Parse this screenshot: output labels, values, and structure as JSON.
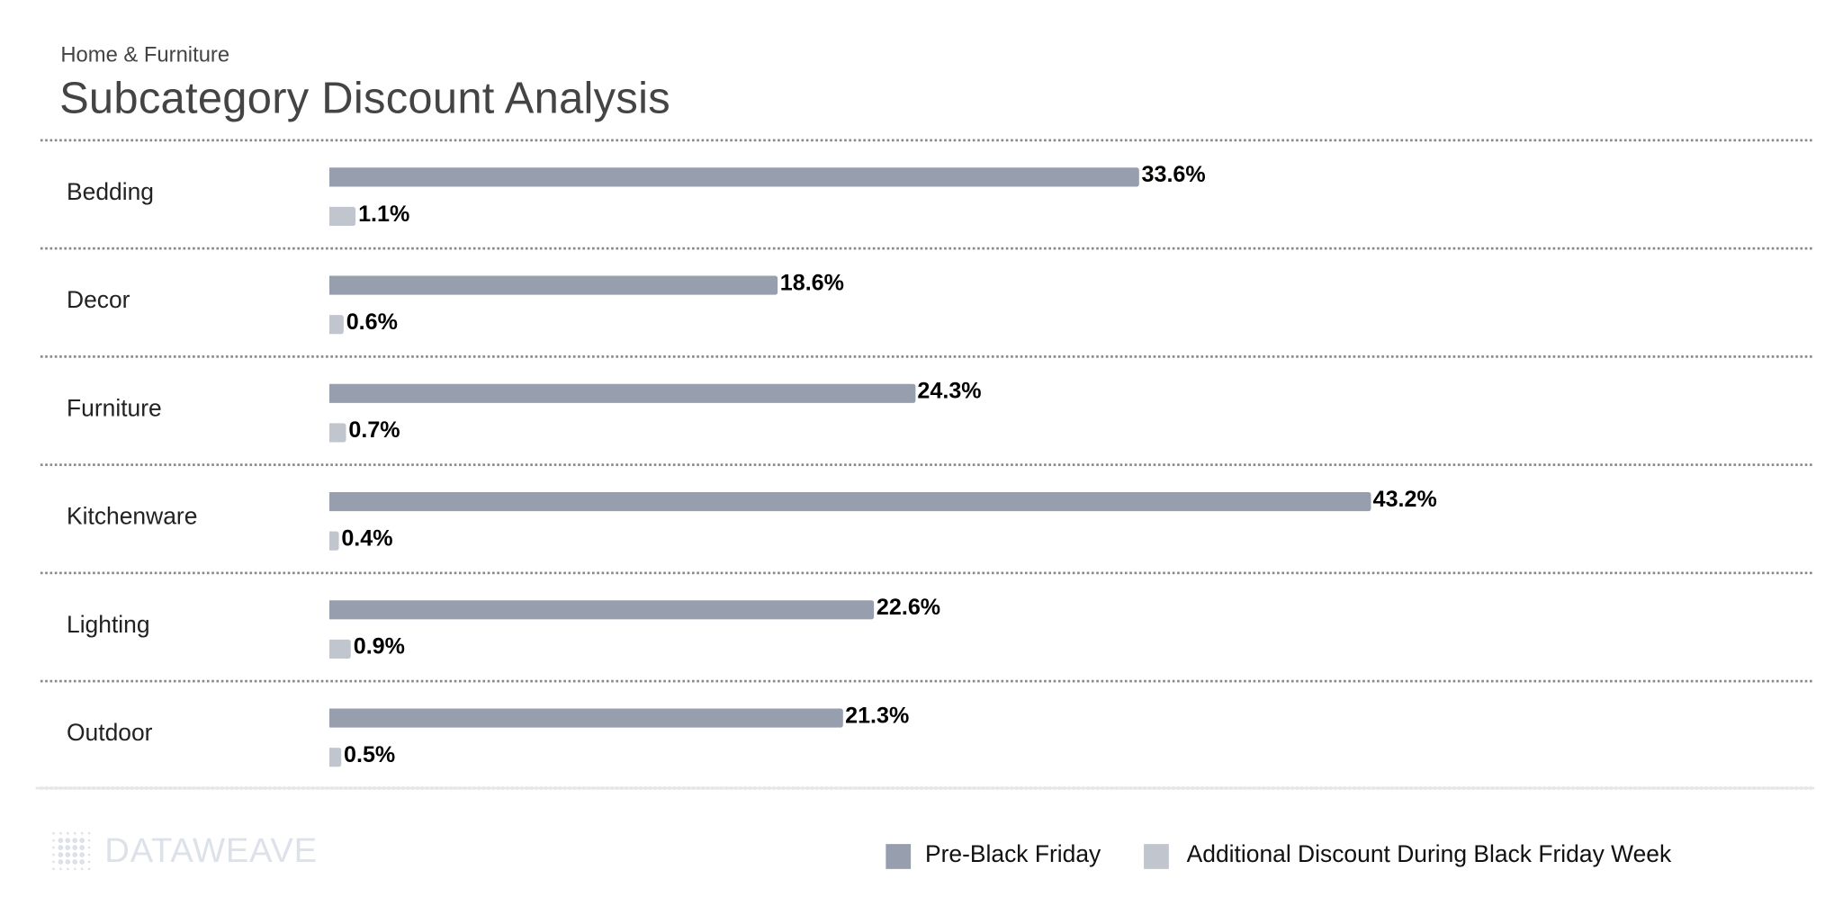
{
  "header": {
    "subtitle": "Home & Furniture",
    "title": "Subcategory Discount Analysis"
  },
  "colors": {
    "pre": "#979fae",
    "additional": "#c0c5ce"
  },
  "chart_data": {
    "type": "bar",
    "orientation": "horizontal",
    "categories": [
      "Bedding",
      "Decor",
      "Furniture",
      "Kitchenware",
      "Lighting",
      "Outdoor"
    ],
    "series": [
      {
        "name": "Pre-Black Friday",
        "values": [
          33.6,
          18.6,
          24.3,
          43.2,
          22.6,
          21.3
        ],
        "labels": [
          "33.6%",
          "18.6%",
          "24.3%",
          "43.2%",
          "22.6%",
          "21.3%"
        ]
      },
      {
        "name": "Additional Discount During Black Friday Week",
        "values": [
          1.1,
          0.6,
          0.7,
          0.4,
          0.9,
          0.5
        ],
        "labels": [
          "1.1%",
          "0.6%",
          "0.7%",
          "0.4%",
          "0.9%",
          "0.5%"
        ]
      }
    ],
    "legend": "bottom-right",
    "grid": false
  },
  "legend": {
    "items": [
      "Pre-Black Friday",
      "Additional Discount During Black Friday Week"
    ]
  },
  "logo": {
    "text": "DATAWEAVE"
  }
}
